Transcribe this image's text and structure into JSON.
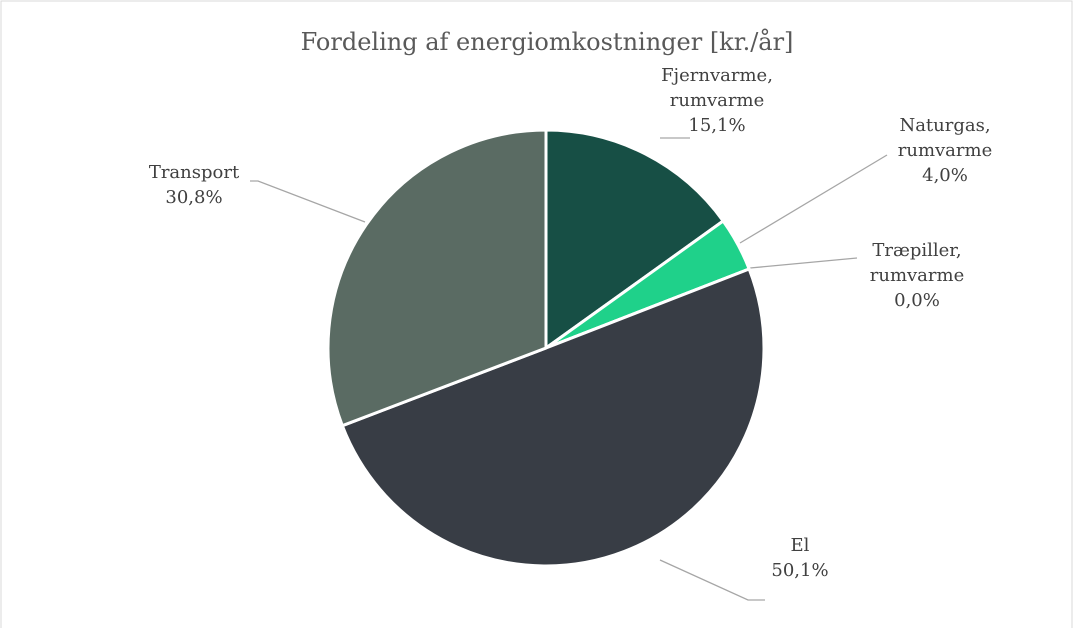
{
  "chart_data": {
    "type": "pie",
    "title": "Fordeling af energiomkostninger [kr./år]",
    "categories": [
      "Fjernvarme, rumvarme",
      "Naturgas, rumvarme",
      "Træpiller, rumvarme",
      "El",
      "Transport"
    ],
    "values": [
      15.1,
      4.0,
      0.0,
      50.1,
      30.8
    ],
    "value_labels": [
      "15,1%",
      "4,0%",
      "0,0%",
      "50,1%",
      "30,8%"
    ],
    "colors": [
      "#174f45",
      "#1fd18a",
      "#8fd3b6",
      "#383d45",
      "#5a6b63"
    ]
  }
}
